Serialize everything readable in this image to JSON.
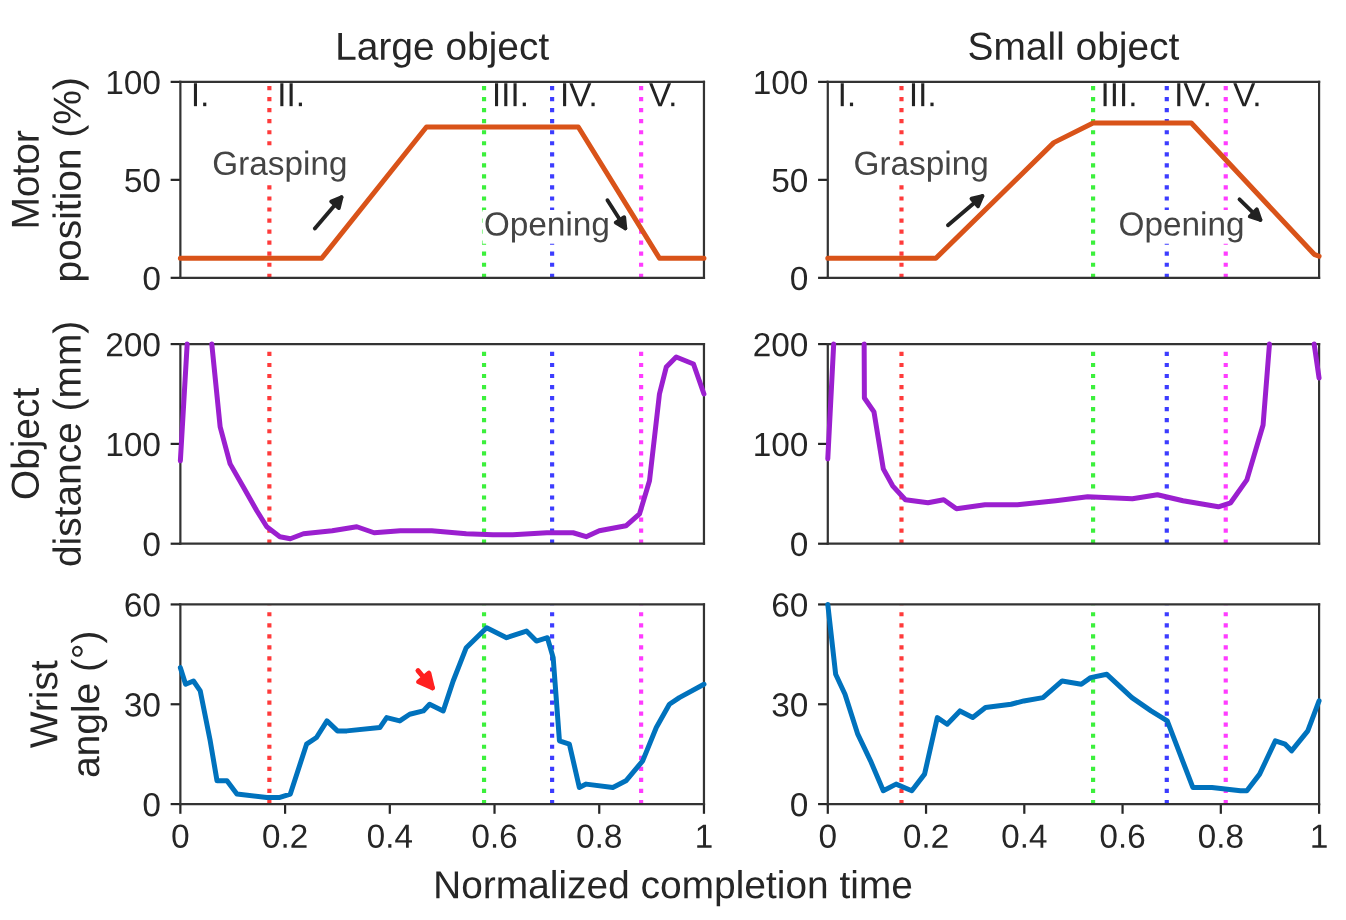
{
  "chart_data": [
    {
      "type": "line",
      "title": "Large object",
      "ylabel": "Motor\nposition (%)",
      "xlim": [
        0,
        1
      ],
      "ylim": [
        0,
        100
      ],
      "yticks": [
        0,
        50,
        100
      ],
      "tick_labels": "y",
      "grid": false,
      "x": [
        0,
        0.27,
        0.47,
        0.76,
        0.915,
        1
      ],
      "series": [
        {
          "color": "#d95319",
          "values": [
            10,
            10,
            77,
            77,
            10,
            10
          ]
        }
      ],
      "ref_lines": [
        {
          "axis": "x",
          "value": 0.17,
          "label": "II.",
          "color": "#ff3b3b",
          "line_style": "dotted"
        },
        {
          "axis": "x",
          "value": 0.58,
          "label": "III.",
          "color": "#3cf03c",
          "line_style": "dotted"
        },
        {
          "axis": "x",
          "value": 0.71,
          "label": "IV.",
          "color": "#3c3cff",
          "line_style": "dotted"
        },
        {
          "axis": "x",
          "value": 0.88,
          "label": "V.",
          "color": "#ff3cff",
          "line_style": "dotted"
        }
      ],
      "annotations": [
        "I.",
        "Grasping",
        "Opening"
      ]
    },
    {
      "type": "line",
      "title": "Small object",
      "xlim": [
        0,
        1
      ],
      "ylim": [
        0,
        100
      ],
      "yticks": [
        0,
        50,
        100
      ],
      "tick_labels": "y",
      "grid": false,
      "x": [
        0,
        0.22,
        0.46,
        0.54,
        0.74,
        0.99,
        1
      ],
      "series": [
        {
          "color": "#d95319",
          "values": [
            10,
            10,
            69,
            79,
            79,
            12,
            11
          ]
        }
      ],
      "ref_lines": [
        {
          "axis": "x",
          "value": 0.15,
          "label": "II.",
          "color": "#ff3b3b",
          "line_style": "dotted"
        },
        {
          "axis": "x",
          "value": 0.54,
          "label": "III.",
          "color": "#3cf03c",
          "line_style": "dotted"
        },
        {
          "axis": "x",
          "value": 0.69,
          "label": "IV.",
          "color": "#3c3cff",
          "line_style": "dotted"
        },
        {
          "axis": "x",
          "value": 0.81,
          "label": "V.",
          "color": "#ff3cff",
          "line_style": "dotted"
        }
      ],
      "annotations": [
        "I.",
        "Grasping",
        "Opening"
      ]
    },
    {
      "type": "line",
      "ylabel": "Object\ndistance (mm)",
      "xlim": [
        0,
        1
      ],
      "ylim": [
        0,
        200
      ],
      "yticks": [
        0,
        100,
        200
      ],
      "tick_labels": "y",
      "grid": false,
      "x": [
        0,
        0.013,
        0.04,
        0.06,
        0.076,
        0.095,
        0.12,
        0.146,
        0.165,
        0.19,
        0.21,
        0.235,
        0.29,
        0.337,
        0.37,
        0.42,
        0.48,
        0.546,
        0.597,
        0.635,
        0.7,
        0.75,
        0.775,
        0.8,
        0.851,
        0.877,
        0.896,
        0.915,
        0.928,
        0.947,
        0.98,
        1
      ],
      "series": [
        {
          "color": "#9b1fcf",
          "values": [
            83,
            200,
            null,
            200,
            117,
            80,
            57,
            33,
            17,
            7,
            5,
            10,
            13,
            17,
            11,
            13,
            13,
            10,
            9,
            9,
            11,
            11,
            7,
            13,
            18,
            30,
            63,
            150,
            177,
            187,
            180,
            150
          ]
        }
      ],
      "ref_lines": [
        {
          "axis": "x",
          "value": 0.17,
          "color": "#ff3b3b",
          "line_style": "dotted"
        },
        {
          "axis": "x",
          "value": 0.58,
          "color": "#3cf03c",
          "line_style": "dotted"
        },
        {
          "axis": "x",
          "value": 0.71,
          "color": "#3c3cff",
          "line_style": "dotted"
        },
        {
          "axis": "x",
          "value": 0.88,
          "color": "#ff3cff",
          "line_style": "dotted"
        }
      ]
    },
    {
      "type": "line",
      "xlim": [
        0,
        1
      ],
      "ylim": [
        0,
        200
      ],
      "yticks": [
        0,
        100,
        200
      ],
      "tick_labels": "y",
      "grid": false,
      "x": [
        0,
        0.012,
        0.04,
        0.074,
        0.0745,
        0.094,
        0.113,
        0.132,
        0.158,
        0.204,
        0.236,
        0.262,
        0.32,
        0.386,
        0.464,
        0.529,
        0.62,
        0.671,
        0.723,
        0.795,
        0.82,
        0.853,
        0.886,
        0.899,
        0.95,
        0.99,
        1
      ],
      "series": [
        {
          "color": "#9b1fcf",
          "values": [
            85,
            200,
            null,
            200,
            146,
            132,
            75,
            58,
            44,
            41,
            44,
            35,
            39,
            39,
            43,
            47,
            45,
            49,
            43,
            37,
            41,
            64,
            119,
            200,
            null,
            200,
            166
          ]
        }
      ],
      "ref_lines": [
        {
          "axis": "x",
          "value": 0.15,
          "color": "#ff3b3b",
          "line_style": "dotted"
        },
        {
          "axis": "x",
          "value": 0.54,
          "color": "#3cf03c",
          "line_style": "dotted"
        },
        {
          "axis": "x",
          "value": 0.69,
          "color": "#3c3cff",
          "line_style": "dotted"
        },
        {
          "axis": "x",
          "value": 0.81,
          "color": "#ff3cff",
          "line_style": "dotted"
        }
      ]
    },
    {
      "type": "line",
      "ylabel": "Wrist\nangle (°)",
      "xlabel": "Normalized completion time",
      "xlim": [
        0,
        1
      ],
      "ylim": [
        0,
        60
      ],
      "yticks": [
        0,
        30,
        60
      ],
      "xticks": [
        0,
        0.2,
        0.4,
        0.6,
        0.8,
        1
      ],
      "grid": false,
      "x": [
        0,
        0.01,
        0.025,
        0.038,
        0.057,
        0.07,
        0.089,
        0.108,
        0.165,
        0.19,
        0.21,
        0.241,
        0.26,
        0.28,
        0.3,
        0.318,
        0.381,
        0.394,
        0.419,
        0.438,
        0.464,
        0.476,
        0.502,
        0.521,
        0.546,
        0.585,
        0.623,
        0.661,
        0.68,
        0.701,
        0.712,
        0.724,
        0.743,
        0.762,
        0.775,
        0.826,
        0.851,
        0.883,
        0.909,
        0.934,
        0.953,
        1
      ],
      "series": [
        {
          "color": "#0072bd",
          "values": [
            41,
            36,
            37,
            34,
            19,
            7,
            7,
            3,
            2,
            2,
            3,
            18,
            20,
            25,
            22,
            22,
            23,
            26,
            25,
            27,
            28,
            30,
            28,
            37,
            47,
            53,
            50,
            52,
            49,
            50,
            44,
            19,
            18,
            5,
            6,
            5,
            7,
            13,
            23,
            30,
            32,
            36
          ]
        }
      ],
      "ref_lines": [
        {
          "axis": "x",
          "value": 0.17,
          "color": "#ff3b3b",
          "line_style": "dotted"
        },
        {
          "axis": "x",
          "value": 0.58,
          "color": "#3cf03c",
          "line_style": "dotted"
        },
        {
          "axis": "x",
          "value": 0.71,
          "color": "#3c3cff",
          "line_style": "dotted"
        },
        {
          "axis": "x",
          "value": 0.88,
          "color": "#ff3cff",
          "line_style": "dotted"
        }
      ]
    },
    {
      "type": "line",
      "xlim": [
        0,
        1
      ],
      "ylim": [
        0,
        60
      ],
      "yticks": [
        0,
        30,
        60
      ],
      "xticks": [
        0,
        0.2,
        0.4,
        0.6,
        0.8,
        1
      ],
      "grid": false,
      "x": [
        0,
        0.016,
        0.035,
        0.061,
        0.087,
        0.113,
        0.139,
        0.171,
        0.197,
        0.223,
        0.243,
        0.269,
        0.295,
        0.321,
        0.373,
        0.399,
        0.438,
        0.477,
        0.516,
        0.535,
        0.568,
        0.619,
        0.658,
        0.691,
        0.717,
        0.743,
        0.782,
        0.84,
        0.853,
        0.879,
        0.911,
        0.931,
        0.944,
        0.977,
        1
      ],
      "series": [
        {
          "color": "#0072bd",
          "values": [
            60,
            39,
            33,
            21,
            13,
            4,
            6,
            4,
            9,
            26,
            24,
            28,
            26,
            29,
            30,
            31,
            32,
            37,
            36,
            38,
            39,
            32,
            28,
            25,
            15,
            5,
            5,
            4,
            4,
            9,
            19,
            18,
            16,
            22,
            31
          ]
        }
      ],
      "ref_lines": [
        {
          "axis": "x",
          "value": 0.15,
          "color": "#ff3b3b",
          "line_style": "dotted"
        },
        {
          "axis": "x",
          "value": 0.54,
          "color": "#3cf03c",
          "line_style": "dotted"
        },
        {
          "axis": "x",
          "value": 0.69,
          "color": "#3c3cff",
          "line_style": "dotted"
        },
        {
          "axis": "x",
          "value": 0.81,
          "color": "#ff3cff",
          "line_style": "dotted"
        }
      ]
    }
  ]
}
